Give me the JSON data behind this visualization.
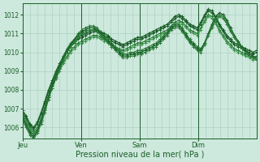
{
  "xlabel": "Pression niveau de la mer( hPa )",
  "ylim": [
    1005.4,
    1012.6
  ],
  "xlim": [
    0,
    96
  ],
  "yticks": [
    1006,
    1007,
    1008,
    1009,
    1010,
    1011,
    1012
  ],
  "day_ticks": [
    0,
    24,
    48,
    72
  ],
  "day_labels": [
    "Jeu",
    "Ven",
    "Sam",
    "Dim"
  ],
  "bg_color": "#cde8dc",
  "grid_color": "#a8ccbe",
  "line_color_dark": "#1a5e28",
  "line_color_mid": "#2a7a38",
  "line_color_light": "#3a9448",
  "series": [
    [
      1006.8,
      1006.5,
      1006.1,
      1005.9,
      1006.2,
      1006.7,
      1007.3,
      1007.9,
      1008.4,
      1008.9,
      1009.3,
      1009.7,
      1010.0,
      1010.3,
      1010.5,
      1010.7,
      1010.8,
      1010.9,
      1011.0,
      1011.1,
      1011.1,
      1011.0,
      1010.9,
      1010.8,
      1010.6,
      1010.5,
      1010.4,
      1010.3,
      1010.4,
      1010.5,
      1010.6,
      1010.7,
      1010.7,
      1010.8,
      1010.9,
      1011.0,
      1011.1,
      1011.2,
      1011.3,
      1011.4,
      1011.6,
      1011.8,
      1011.9,
      1011.8,
      1011.6,
      1011.4,
      1011.3,
      1011.2,
      1011.5,
      1011.9,
      1012.2,
      1012.1,
      1011.8,
      1011.4,
      1011.1,
      1010.8,
      1010.6,
      1010.4,
      1010.3,
      1010.2,
      1010.1,
      1010.0,
      1009.9,
      1010.0
    ],
    [
      1006.7,
      1006.4,
      1006.0,
      1005.8,
      1006.0,
      1006.5,
      1007.1,
      1007.7,
      1008.2,
      1008.7,
      1009.1,
      1009.5,
      1009.8,
      1010.1,
      1010.3,
      1010.5,
      1010.6,
      1010.7,
      1010.8,
      1010.9,
      1010.9,
      1010.8,
      1010.7,
      1010.6,
      1010.4,
      1010.3,
      1010.2,
      1010.1,
      1010.2,
      1010.3,
      1010.4,
      1010.5,
      1010.5,
      1010.6,
      1010.7,
      1010.8,
      1010.9,
      1011.0,
      1011.1,
      1011.2,
      1011.4,
      1011.6,
      1011.7,
      1011.6,
      1011.4,
      1011.2,
      1011.1,
      1011.0,
      1011.3,
      1011.7,
      1012.0,
      1011.9,
      1011.6,
      1011.2,
      1010.9,
      1010.6,
      1010.4,
      1010.2,
      1010.1,
      1010.0,
      1009.9,
      1009.8,
      1009.7,
      1009.8
    ],
    [
      1006.7,
      1006.3,
      1005.9,
      1005.7,
      1005.9,
      1006.4,
      1007.0,
      1007.6,
      1008.1,
      1008.6,
      1009.0,
      1009.4,
      1009.7,
      1010.0,
      1010.2,
      1010.4,
      1010.5,
      1010.6,
      1010.7,
      1010.8,
      1010.8,
      1010.7,
      1010.6,
      1010.5,
      1010.3,
      1010.2,
      1010.1,
      1010.0,
      1010.1,
      1010.2,
      1010.3,
      1010.4,
      1010.4,
      1010.5,
      1010.6,
      1010.7,
      1010.8,
      1010.9,
      1011.0,
      1011.1,
      1011.3,
      1011.5,
      1011.6,
      1011.5,
      1011.3,
      1011.1,
      1011.0,
      1010.9,
      1011.2,
      1011.6,
      1011.9,
      1011.8,
      1011.5,
      1011.1,
      1010.8,
      1010.5,
      1010.3,
      1010.1,
      1010.0,
      1009.9,
      1009.8,
      1009.7,
      1009.6,
      1009.7
    ],
    [
      1006.9,
      1006.6,
      1006.2,
      1006.0,
      1006.3,
      1006.8,
      1007.4,
      1008.0,
      1008.5,
      1009.0,
      1009.4,
      1009.8,
      1010.1,
      1010.4,
      1010.6,
      1010.8,
      1010.9,
      1011.0,
      1011.1,
      1011.2,
      1011.2,
      1011.1,
      1011.0,
      1010.9,
      1010.7,
      1010.6,
      1010.5,
      1010.4,
      1010.5,
      1010.6,
      1010.7,
      1010.8,
      1010.8,
      1010.9,
      1011.0,
      1011.1,
      1011.2,
      1011.3,
      1011.4,
      1011.5,
      1011.7,
      1011.9,
      1012.0,
      1011.9,
      1011.7,
      1011.5,
      1011.4,
      1011.3,
      1011.6,
      1012.0,
      1012.3,
      1012.2,
      1011.9,
      1011.5,
      1011.2,
      1010.9,
      1010.7,
      1010.5,
      1010.4,
      1010.3,
      1010.2,
      1010.1,
      1010.0,
      1010.1
    ],
    [
      1006.6,
      1006.2,
      1005.8,
      1005.6,
      1005.9,
      1006.4,
      1007.0,
      1007.7,
      1008.3,
      1008.8,
      1009.3,
      1009.8,
      1010.2,
      1010.5,
      1010.7,
      1011.0,
      1011.2,
      1011.3,
      1011.4,
      1011.4,
      1011.3,
      1011.1,
      1010.9,
      1010.7,
      1010.5,
      1010.3,
      1010.1,
      1009.9,
      1009.9,
      1010.0,
      1010.0,
      1010.1,
      1010.1,
      1010.2,
      1010.3,
      1010.4,
      1010.5,
      1010.7,
      1010.9,
      1011.1,
      1011.4,
      1011.5,
      1011.5,
      1011.3,
      1011.0,
      1010.7,
      1010.5,
      1010.3,
      1010.2,
      1010.5,
      1010.9,
      1011.3,
      1011.7,
      1011.9,
      1011.8,
      1011.5,
      1011.1,
      1010.8,
      1010.5,
      1010.2,
      1010.0,
      1009.8,
      1009.7,
      1009.6
    ],
    [
      1006.5,
      1006.1,
      1005.7,
      1005.5,
      1005.8,
      1006.3,
      1006.9,
      1007.6,
      1008.2,
      1008.7,
      1009.2,
      1009.7,
      1010.1,
      1010.4,
      1010.7,
      1010.9,
      1011.1,
      1011.2,
      1011.3,
      1011.3,
      1011.2,
      1011.0,
      1010.8,
      1010.6,
      1010.4,
      1010.2,
      1010.0,
      1009.8,
      1009.8,
      1009.9,
      1009.9,
      1010.0,
      1010.0,
      1010.1,
      1010.2,
      1010.3,
      1010.4,
      1010.6,
      1010.8,
      1011.0,
      1011.3,
      1011.4,
      1011.4,
      1011.2,
      1010.9,
      1010.6,
      1010.4,
      1010.2,
      1010.1,
      1010.5,
      1011.0,
      1011.5,
      1011.9,
      1012.1,
      1012.0,
      1011.7,
      1011.3,
      1010.9,
      1010.6,
      1010.3,
      1010.1,
      1009.9,
      1009.8,
      1009.7
    ],
    [
      1006.4,
      1006.0,
      1005.6,
      1005.4,
      1005.7,
      1006.2,
      1006.8,
      1007.5,
      1008.1,
      1008.6,
      1009.1,
      1009.6,
      1010.0,
      1010.3,
      1010.6,
      1010.8,
      1011.0,
      1011.1,
      1011.2,
      1011.2,
      1011.1,
      1010.9,
      1010.7,
      1010.5,
      1010.3,
      1010.1,
      1009.9,
      1009.7,
      1009.7,
      1009.8,
      1009.8,
      1009.9,
      1009.9,
      1010.0,
      1010.1,
      1010.2,
      1010.3,
      1010.5,
      1010.7,
      1010.9,
      1011.2,
      1011.3,
      1011.3,
      1011.1,
      1010.8,
      1010.5,
      1010.3,
      1010.1,
      1010.0,
      1010.4,
      1010.9,
      1011.4,
      1011.8,
      1012.0,
      1011.9,
      1011.6,
      1011.2,
      1010.8,
      1010.5,
      1010.2,
      1010.0,
      1009.8,
      1009.7,
      1009.6
    ]
  ]
}
